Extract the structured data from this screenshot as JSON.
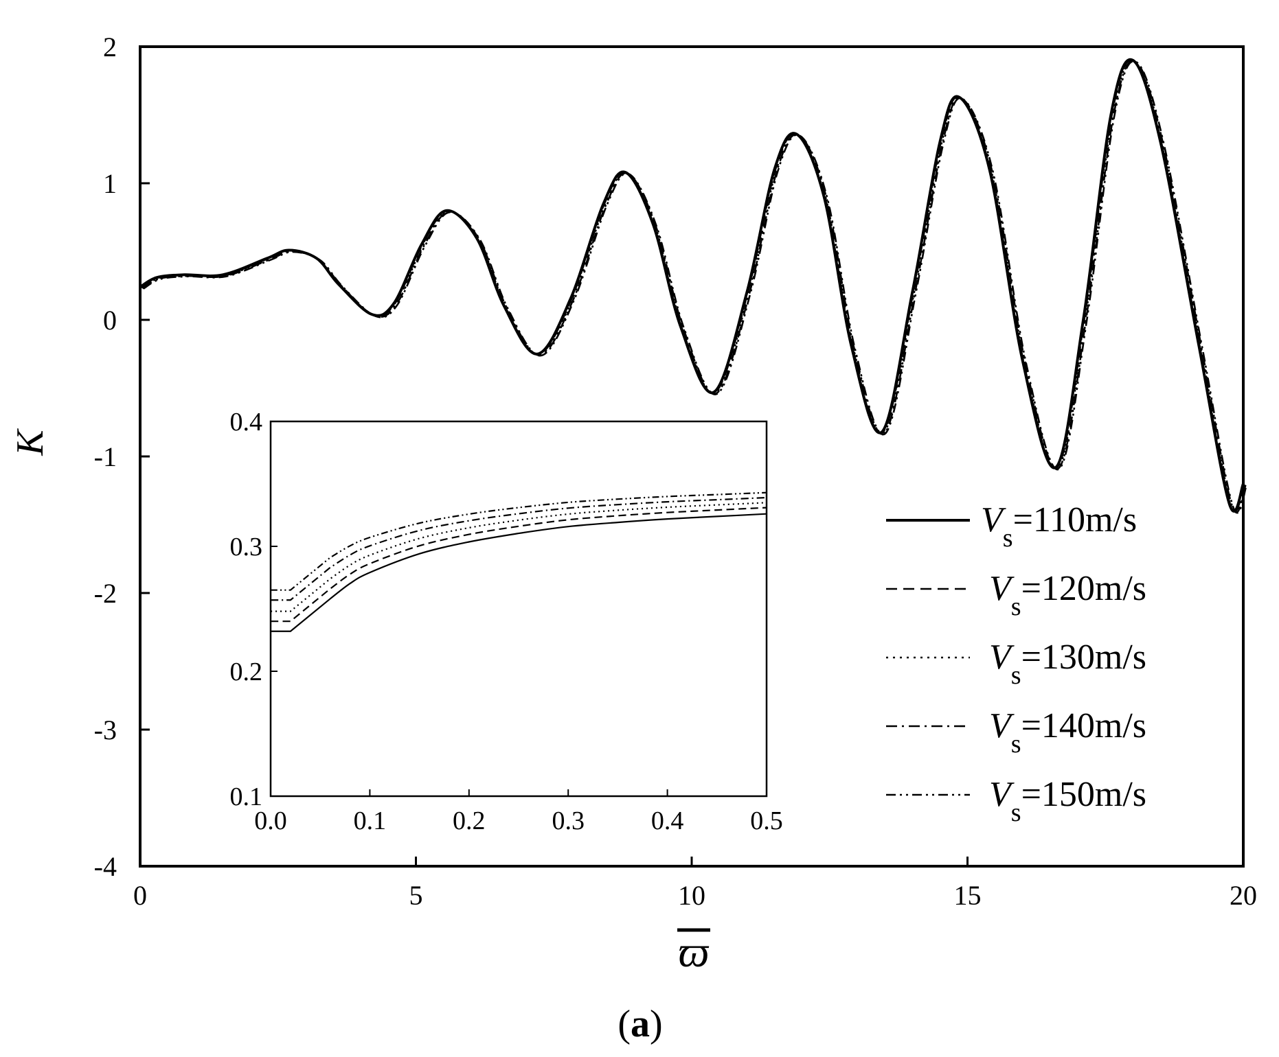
{
  "chart_data": {
    "type": "line",
    "panel_label": "(a)",
    "panel_letter": "a",
    "paren_open": "(",
    "paren_close": ")",
    "xlabel": "ϖ",
    "ylabel": "K",
    "xlim": [
      0,
      20
    ],
    "ylim": [
      -4,
      2
    ],
    "xticks": [
      "0",
      "5",
      "10",
      "15",
      "20"
    ],
    "yticks": [
      "-4",
      "-3",
      "-2",
      "-1",
      "0",
      "1",
      "2"
    ],
    "legend_position": "lower-right",
    "series": [
      {
        "name": "Vs=110m/s",
        "symbol": "V",
        "subscript": "s",
        "suffix": "=110m/s",
        "dash": "solid",
        "inset_start": 0.232,
        "inset_end": 0.326
      },
      {
        "name": "Vs=120m/s",
        "symbol": "V",
        "subscript": "s",
        "suffix": "=120m/s",
        "dash": "dashed",
        "inset_start": 0.24,
        "inset_end": 0.331
      },
      {
        "name": "Vs=130m/s",
        "symbol": "V",
        "subscript": "s",
        "suffix": "=130m/s",
        "dash": "dotted",
        "inset_start": 0.248,
        "inset_end": 0.335
      },
      {
        "name": "Vs=140m/s",
        "symbol": "V",
        "subscript": "s",
        "suffix": "=140m/s",
        "dash": "dashdot",
        "inset_start": 0.257,
        "inset_end": 0.339
      },
      {
        "name": "Vs=150m/s",
        "symbol": "V",
        "subscript": "s",
        "suffix": "=150m/s",
        "dash": "dashdotdot",
        "inset_start": 0.265,
        "inset_end": 0.343
      }
    ],
    "main_points": [
      [
        0,
        0.24
      ],
      [
        0.3,
        0.31
      ],
      [
        0.8,
        0.33
      ],
      [
        1.5,
        0.33
      ],
      [
        2.3,
        0.45
      ],
      [
        2.7,
        0.51
      ],
      [
        3.2,
        0.45
      ],
      [
        3.6,
        0.26
      ],
      [
        4.2,
        0.04
      ],
      [
        4.6,
        0.12
      ],
      [
        5.1,
        0.55
      ],
      [
        5.55,
        0.8
      ],
      [
        6.1,
        0.6
      ],
      [
        6.6,
        0.1
      ],
      [
        7.2,
        -0.25
      ],
      [
        7.8,
        0.15
      ],
      [
        8.4,
        0.85
      ],
      [
        8.8,
        1.08
      ],
      [
        9.3,
        0.7
      ],
      [
        9.8,
        -0.05
      ],
      [
        10.4,
        -0.53
      ],
      [
        11.0,
        0.2
      ],
      [
        11.5,
        1.1
      ],
      [
        11.9,
        1.36
      ],
      [
        12.4,
        0.9
      ],
      [
        12.9,
        -0.2
      ],
      [
        13.45,
        -0.82
      ],
      [
        14.0,
        0.2
      ],
      [
        14.5,
        1.3
      ],
      [
        14.85,
        1.63
      ],
      [
        15.4,
        1.1
      ],
      [
        16.0,
        -0.3
      ],
      [
        16.6,
        -1.08
      ],
      [
        17.1,
        0.0
      ],
      [
        17.6,
        1.5
      ],
      [
        18.0,
        1.9
      ],
      [
        18.5,
        1.3
      ],
      [
        19.2,
        -0.2
      ],
      [
        19.75,
        -1.35
      ],
      [
        20.0,
        -1.2
      ]
    ],
    "main_offsets": [
      0,
      0.015,
      0.03,
      0.045,
      0.06
    ],
    "inset": {
      "xlim": [
        0,
        0.5
      ],
      "ylim": [
        0.1,
        0.4
      ],
      "xticks": [
        "0.0",
        "0.1",
        "0.2",
        "0.3",
        "0.4",
        "0.5"
      ],
      "yticks": [
        "0.1",
        "0.2",
        "0.3",
        "0.4"
      ],
      "knee_x": [
        0.02,
        0.06
      ],
      "knee_rise": 0.026,
      "shape": [
        [
          0.06,
          0.0
        ],
        [
          0.08,
          0.18
        ],
        [
          0.1,
          0.31
        ],
        [
          0.15,
          0.53
        ],
        [
          0.2,
          0.67
        ],
        [
          0.25,
          0.77
        ],
        [
          0.3,
          0.85
        ],
        [
          0.35,
          0.9
        ],
        [
          0.4,
          0.94
        ],
        [
          0.45,
          0.97
        ],
        [
          0.5,
          1.0
        ]
      ]
    }
  }
}
